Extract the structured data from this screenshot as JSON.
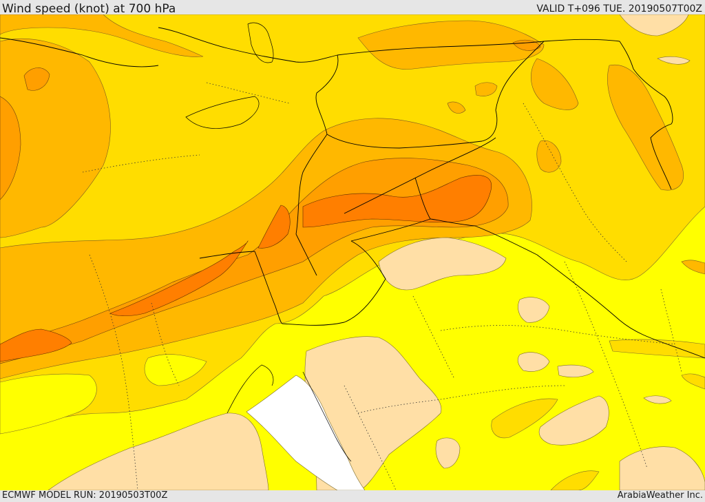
{
  "header": {
    "title": "Wind speed (knot) at 700 hPa",
    "valid": "VALID T+096 TUE. 20190507T00Z"
  },
  "footer": {
    "model_run": "ECMWF MODEL RUN: 20190503T00Z",
    "credit": "ArabiaWeather Inc."
  },
  "colors": {
    "lt10": "#ffffff",
    "b10_15": "#ffdfa6",
    "b15_20": "#ffff00",
    "b20_25": "#ffdd00",
    "b25_30": "#ffb800",
    "b30_35": "#ff9f00",
    "b35_40": "#ff7f00"
  }
}
